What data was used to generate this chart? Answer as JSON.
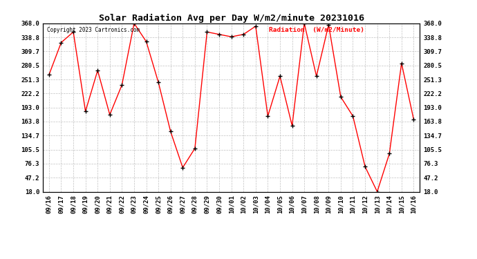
{
  "title": "Solar Radiation Avg per Day W/m2/minute 20231016",
  "copyright_text": "Copyright 2023 Cartronics.com",
  "legend_label": "Radiation  (W/m2/Minute)",
  "dates": [
    "09/16",
    "09/17",
    "09/18",
    "09/19",
    "09/20",
    "09/21",
    "09/22",
    "09/23",
    "09/24",
    "09/25",
    "09/26",
    "09/27",
    "09/28",
    "09/29",
    "09/30",
    "10/01",
    "10/02",
    "10/03",
    "10/04",
    "10/05",
    "10/06",
    "10/07",
    "10/08",
    "10/09",
    "10/10",
    "10/11",
    "10/12",
    "10/13",
    "10/14",
    "10/15",
    "10/16"
  ],
  "values": [
    261.0,
    328.0,
    350.0,
    185.0,
    270.0,
    178.0,
    240.0,
    368.0,
    330.0,
    245.0,
    143.0,
    68.0,
    108.0,
    350.0,
    345.0,
    340.0,
    345.0,
    362.0,
    175.0,
    258.0,
    155.0,
    368.0,
    258.0,
    365.0,
    215.0,
    175.0,
    70.0,
    18.0,
    97.0,
    285.0,
    168.0
  ],
  "ymin": 18.0,
  "ymax": 368.0,
  "yticks": [
    18.0,
    47.2,
    76.3,
    105.5,
    134.7,
    163.8,
    193.0,
    222.2,
    251.3,
    280.5,
    309.7,
    338.8,
    368.0
  ],
  "line_color": "#ff0000",
  "marker_color": "#000000",
  "bg_color": "#ffffff",
  "grid_color": "#c0c0c0",
  "title_fontsize": 9.5,
  "tick_fontsize": 6.5,
  "copyright_fontsize": 5.5,
  "legend_fontsize": 6.8
}
